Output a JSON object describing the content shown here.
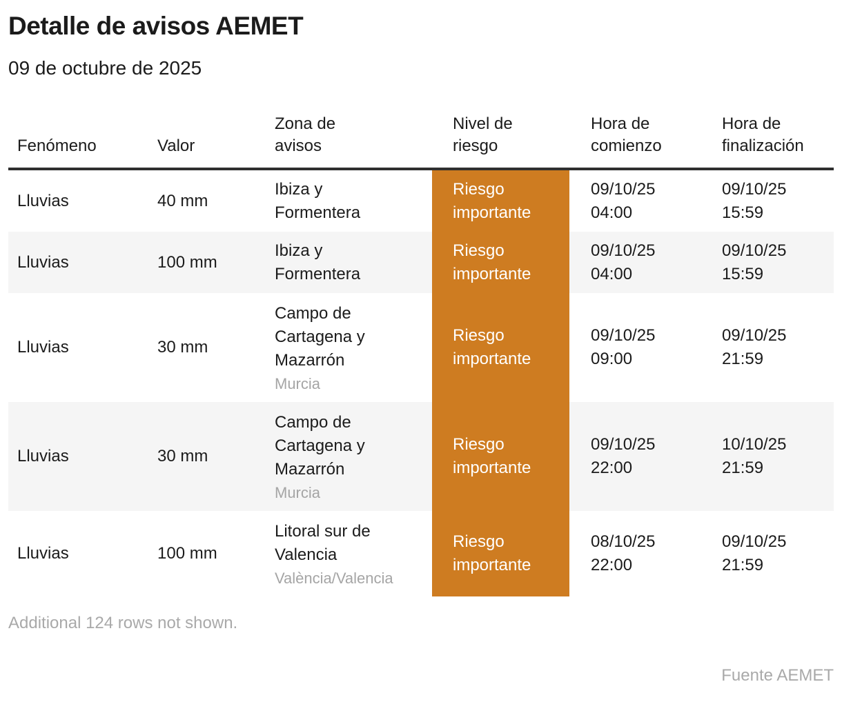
{
  "header": {
    "title": "Detalle de avisos AEMET",
    "subtitle": "09 de octubre de 2025"
  },
  "chart_data": {
    "type": "table",
    "title": "Detalle de avisos AEMET",
    "subtitle": "09 de octubre de 2025",
    "columns": [
      [
        "Fenómeno"
      ],
      [
        "Valor"
      ],
      [
        "Zona de",
        "avisos"
      ],
      [
        "Nivel de",
        "riesgo"
      ],
      [
        "Hora de",
        "comienzo"
      ],
      [
        "Hora de",
        "finalización"
      ]
    ],
    "rows": [
      {
        "fenomeno": "Lluvias",
        "valor": "40 mm",
        "zona": [
          "Ibiza y",
          "Formentera"
        ],
        "zona_region": "",
        "nivel": "Riesgo importante",
        "hora_comienzo": [
          "09/10/25",
          "04:00"
        ],
        "hora_finalizacion": [
          "09/10/25",
          "15:59"
        ]
      },
      {
        "fenomeno": "Lluvias",
        "valor": "100 mm",
        "zona": [
          "Ibiza y",
          "Formentera"
        ],
        "zona_region": "",
        "nivel": "Riesgo importante",
        "hora_comienzo": [
          "09/10/25",
          "04:00"
        ],
        "hora_finalizacion": [
          "09/10/25",
          "15:59"
        ]
      },
      {
        "fenomeno": "Lluvias",
        "valor": "30 mm",
        "zona": [
          "Campo de",
          "Cartagena y",
          "Mazarrón"
        ],
        "zona_region": "Murcia",
        "nivel": "Riesgo importante",
        "hora_comienzo": [
          "09/10/25",
          "09:00"
        ],
        "hora_finalizacion": [
          "09/10/25",
          "21:59"
        ]
      },
      {
        "fenomeno": "Lluvias",
        "valor": "30 mm",
        "zona": [
          "Campo de",
          "Cartagena y",
          "Mazarrón"
        ],
        "zona_region": "Murcia",
        "nivel": "Riesgo importante",
        "hora_comienzo": [
          "09/10/25",
          "22:00"
        ],
        "hora_finalizacion": [
          "10/10/25",
          "21:59"
        ]
      },
      {
        "fenomeno": "Lluvias",
        "valor": "100 mm",
        "zona": [
          "Litoral sur de",
          "Valencia"
        ],
        "zona_region": "València/Valencia",
        "nivel": "Riesgo importante",
        "hora_comienzo": [
          "08/10/25",
          "22:00"
        ],
        "hora_finalizacion": [
          "09/10/25",
          "21:59"
        ]
      }
    ],
    "colors": {
      "risk_importante_bg": "#ce7c21",
      "risk_importante_text": "#ffffff",
      "zebra_row_bg": "#f5f5f5",
      "header_rule": "#2f2f2f",
      "muted_text": "#a9a9a9"
    },
    "legend_position": "none",
    "grid": false
  },
  "footer": {
    "additional_rows_note": "Additional 124 rows not shown.",
    "source": "Fuente AEMET"
  }
}
